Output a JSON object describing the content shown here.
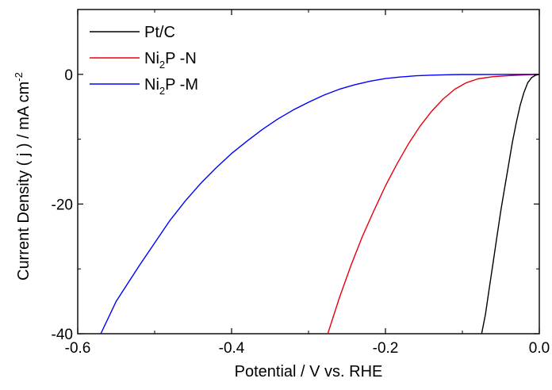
{
  "chart_data": {
    "type": "line",
    "xlabel": "Potential / V vs. RHE",
    "ylabel": "Current Density ( j )  / mA cm",
    "ylabel_superscript": "-2",
    "xlim": [
      -0.6,
      0.0
    ],
    "ylim": [
      -40,
      10
    ],
    "x_ticks": [
      -0.6,
      -0.4,
      -0.2,
      0.0
    ],
    "x_tick_labels": [
      "-0.6",
      "-0.4",
      "-0.2",
      "0.0"
    ],
    "y_ticks": [
      -40,
      -20,
      0
    ],
    "y_tick_labels": [
      "-40",
      "-20",
      "0"
    ],
    "grid": false,
    "legend_position": "top-left",
    "series": [
      {
        "name": "Pt/C",
        "legend": {
          "main": "Pt/C",
          "sub": "",
          "rest": ""
        },
        "color": "#000000",
        "x": [
          -0.075,
          -0.07,
          -0.065,
          -0.06,
          -0.055,
          -0.05,
          -0.045,
          -0.04,
          -0.035,
          -0.03,
          -0.025,
          -0.02,
          -0.015,
          -0.01,
          -0.005,
          0.0
        ],
        "y": [
          -40,
          -37,
          -33,
          -29,
          -25,
          -21,
          -17.5,
          -14,
          -10.5,
          -7.5,
          -4.8,
          -2.8,
          -1.3,
          -0.5,
          -0.15,
          0.0
        ]
      },
      {
        "name": "Ni2P -N",
        "legend": {
          "main": "Ni",
          "sub": "2",
          "rest": "P -N"
        },
        "color": "#e8000b",
        "x": [
          -0.275,
          -0.26,
          -0.245,
          -0.23,
          -0.215,
          -0.2,
          -0.185,
          -0.17,
          -0.155,
          -0.14,
          -0.125,
          -0.11,
          -0.095,
          -0.08,
          -0.06,
          -0.04,
          -0.02,
          0.0
        ],
        "y": [
          -40,
          -34.5,
          -29.5,
          -25,
          -21,
          -17.2,
          -13.8,
          -10.7,
          -8.0,
          -5.7,
          -3.8,
          -2.3,
          -1.3,
          -0.7,
          -0.35,
          -0.2,
          -0.1,
          0.0
        ]
      },
      {
        "name": "Ni2P -M",
        "legend": {
          "main": "Ni",
          "sub": "2",
          "rest": "P -M"
        },
        "color": "#0000ff",
        "x": [
          -0.57,
          -0.55,
          -0.52,
          -0.5,
          -0.48,
          -0.46,
          -0.44,
          -0.42,
          -0.4,
          -0.38,
          -0.36,
          -0.34,
          -0.32,
          -0.3,
          -0.28,
          -0.26,
          -0.24,
          -0.22,
          -0.2,
          -0.18,
          -0.16,
          -0.14,
          -0.12,
          -0.1,
          -0.08,
          -0.06,
          -0.04,
          -0.02,
          0.0
        ],
        "y": [
          -40,
          -35,
          -29.5,
          -26,
          -22.5,
          -19.5,
          -16.8,
          -14.4,
          -12.2,
          -10.3,
          -8.5,
          -6.9,
          -5.5,
          -4.3,
          -3.2,
          -2.3,
          -1.6,
          -1.05,
          -0.65,
          -0.4,
          -0.22,
          -0.12,
          -0.06,
          -0.03,
          -0.02,
          -0.01,
          -0.005,
          0.0,
          0.0
        ]
      }
    ]
  }
}
